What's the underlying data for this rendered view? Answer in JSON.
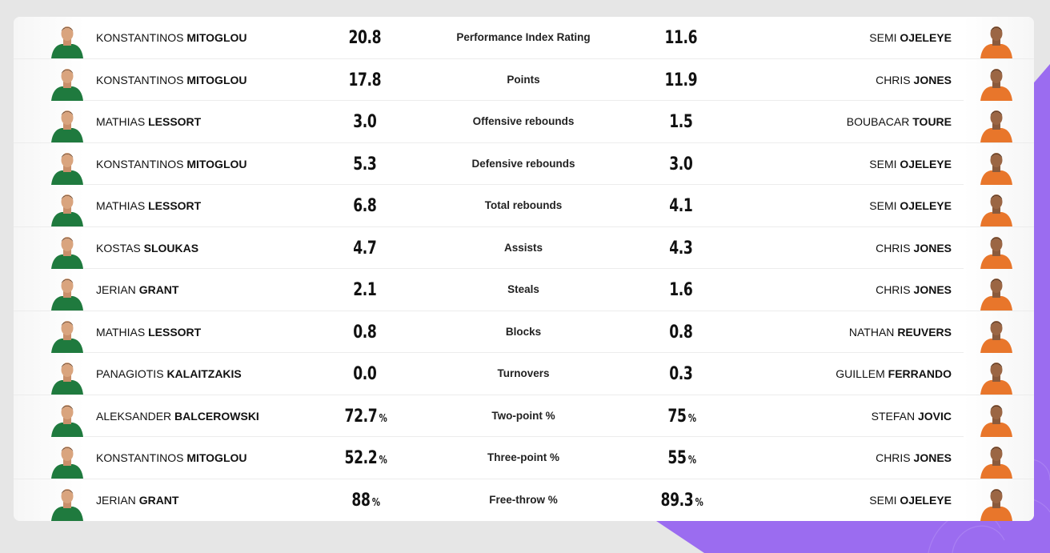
{
  "colors": {
    "page_background": "#e6e6e6",
    "card_background": "#ffffff",
    "accent_purple": "#9b6cf0",
    "home_jersey_green": "#1f7a3e",
    "away_jersey_orange": "#e8762b"
  },
  "rows": [
    {
      "home": {
        "first": "KONSTANTINOS",
        "last": "MITOGLOU"
      },
      "home_value": "20.8",
      "home_unit": "",
      "stat": "Performance Index Rating",
      "away_value": "11.6",
      "away_unit": "",
      "away": {
        "first": "SEMI",
        "last": "OJELEYE"
      }
    },
    {
      "home": {
        "first": "KONSTANTINOS",
        "last": "MITOGLOU"
      },
      "home_value": "17.8",
      "home_unit": "",
      "stat": "Points",
      "away_value": "11.9",
      "away_unit": "",
      "away": {
        "first": "CHRIS",
        "last": "JONES"
      }
    },
    {
      "home": {
        "first": "MATHIAS",
        "last": "LESSORT"
      },
      "home_value": "3.0",
      "home_unit": "",
      "stat": "Offensive rebounds",
      "away_value": "1.5",
      "away_unit": "",
      "away": {
        "first": "BOUBACAR",
        "last": "TOURE"
      }
    },
    {
      "home": {
        "first": "KONSTANTINOS",
        "last": "MITOGLOU"
      },
      "home_value": "5.3",
      "home_unit": "",
      "stat": "Defensive rebounds",
      "away_value": "3.0",
      "away_unit": "",
      "away": {
        "first": "SEMI",
        "last": "OJELEYE"
      }
    },
    {
      "home": {
        "first": "MATHIAS",
        "last": "LESSORT"
      },
      "home_value": "6.8",
      "home_unit": "",
      "stat": "Total rebounds",
      "away_value": "4.1",
      "away_unit": "",
      "away": {
        "first": "SEMI",
        "last": "OJELEYE"
      }
    },
    {
      "home": {
        "first": "KOSTAS",
        "last": "SLOUKAS"
      },
      "home_value": "4.7",
      "home_unit": "",
      "stat": "Assists",
      "away_value": "4.3",
      "away_unit": "",
      "away": {
        "first": "CHRIS",
        "last": "JONES"
      }
    },
    {
      "home": {
        "first": "JERIAN",
        "last": "GRANT"
      },
      "home_value": "2.1",
      "home_unit": "",
      "stat": "Steals",
      "away_value": "1.6",
      "away_unit": "",
      "away": {
        "first": "CHRIS",
        "last": "JONES"
      }
    },
    {
      "home": {
        "first": "MATHIAS",
        "last": "LESSORT"
      },
      "home_value": "0.8",
      "home_unit": "",
      "stat": "Blocks",
      "away_value": "0.8",
      "away_unit": "",
      "away": {
        "first": "NATHAN",
        "last": "REUVERS"
      }
    },
    {
      "home": {
        "first": "PANAGIOTIS",
        "last": "KALAITZAKIS"
      },
      "home_value": "0.0",
      "home_unit": "",
      "stat": "Turnovers",
      "away_value": "0.3",
      "away_unit": "",
      "away": {
        "first": "GUILLEM",
        "last": "FERRANDO"
      }
    },
    {
      "home": {
        "first": "ALEKSANDER",
        "last": "BALCEROWSKI"
      },
      "home_value": "72.7",
      "home_unit": "%",
      "stat": "Two-point %",
      "away_value": "75",
      "away_unit": "%",
      "away": {
        "first": "STEFAN",
        "last": "JOVIC"
      }
    },
    {
      "home": {
        "first": "KONSTANTINOS",
        "last": "MITOGLOU"
      },
      "home_value": "52.2",
      "home_unit": "%",
      "stat": "Three-point %",
      "away_value": "55",
      "away_unit": "%",
      "away": {
        "first": "CHRIS",
        "last": "JONES"
      }
    },
    {
      "home": {
        "first": "JERIAN",
        "last": "GRANT"
      },
      "home_value": "88",
      "home_unit": "%",
      "stat": "Free-throw %",
      "away_value": "89.3",
      "away_unit": "%",
      "away": {
        "first": "SEMI",
        "last": "OJELEYE"
      }
    }
  ]
}
